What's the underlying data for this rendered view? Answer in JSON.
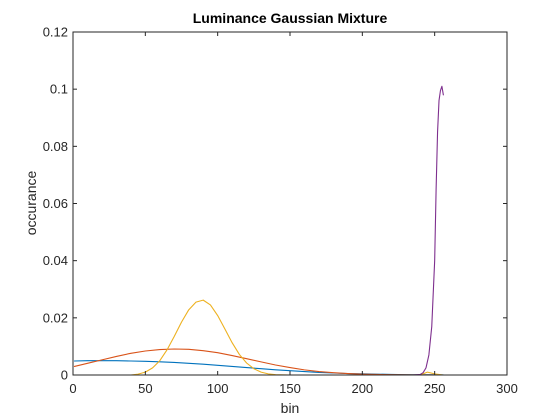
{
  "chart_data": {
    "type": "line",
    "title": "Luminance Gaussian Mixture",
    "xlabel": "bin",
    "ylabel": "occurance",
    "xlim": [
      0,
      300
    ],
    "ylim": [
      0,
      0.12
    ],
    "xticks": [
      0,
      50,
      100,
      150,
      200,
      250,
      300
    ],
    "yticks": [
      0,
      0.02,
      0.04,
      0.06,
      0.08,
      0.1,
      0.12
    ],
    "xtick_labels": [
      "0",
      "50",
      "100",
      "150",
      "200",
      "250",
      "300"
    ],
    "ytick_labels": [
      "0",
      "0.02",
      "0.04",
      "0.06",
      "0.08",
      "0.1",
      "0.12"
    ],
    "grid": false,
    "box": true,
    "series": [
      {
        "color": "#0072BD",
        "x": [
          1,
          10,
          20,
          30,
          40,
          50,
          60,
          70,
          80,
          90,
          100,
          110,
          120,
          130,
          140,
          150,
          160,
          170,
          180,
          190,
          200,
          210,
          220,
          230,
          240,
          250,
          256
        ],
        "y": [
          0.0049,
          0.005,
          0.005,
          0.005,
          0.0049,
          0.0048,
          0.0046,
          0.0044,
          0.0041,
          0.0038,
          0.0034,
          0.003,
          0.0026,
          0.0022,
          0.0018,
          0.0015,
          0.0012,
          0.0009,
          0.0007,
          0.0005,
          0.0004,
          0.0003,
          0.0002,
          0.0001,
          8e-05,
          5e-05,
          4e-05
        ]
      },
      {
        "color": "#D95319",
        "x": [
          1,
          10,
          20,
          30,
          40,
          50,
          60,
          70,
          80,
          90,
          100,
          110,
          120,
          130,
          140,
          150,
          160,
          170,
          180,
          190,
          200,
          210,
          220,
          230,
          240,
          250,
          256
        ],
        "y": [
          0.003,
          0.0041,
          0.0053,
          0.0065,
          0.0076,
          0.0084,
          0.0089,
          0.0091,
          0.009,
          0.0085,
          0.0078,
          0.0068,
          0.0057,
          0.0046,
          0.0035,
          0.0026,
          0.0018,
          0.0012,
          0.0008,
          0.0005,
          0.0003,
          0.0002,
          0.0001,
          5e-05,
          2e-05,
          1e-05,
          0.0
        ]
      },
      {
        "color": "#EDB120",
        "x": [
          1,
          40,
          45,
          50,
          55,
          60,
          65,
          70,
          75,
          80,
          85,
          90,
          95,
          100,
          105,
          110,
          115,
          120,
          125,
          130,
          135,
          140,
          150,
          240,
          245,
          250,
          256
        ],
        "y": [
          0.0,
          0.0,
          0.0003,
          0.001,
          0.0025,
          0.005,
          0.0088,
          0.0135,
          0.0185,
          0.0228,
          0.0255,
          0.0262,
          0.0245,
          0.0208,
          0.0161,
          0.0113,
          0.0072,
          0.0042,
          0.0022,
          0.001,
          0.0004,
          0.0001,
          0.0,
          0.0,
          0.001,
          0.0004,
          0.0
        ]
      },
      {
        "color": "#7E2F8E",
        "x": [
          1,
          100,
          200,
          235,
          240,
          242,
          244,
          246,
          248,
          250,
          251,
          252,
          253,
          254,
          255,
          256
        ],
        "y": [
          0.0,
          0.0,
          0.0,
          0.0,
          0.0002,
          0.0008,
          0.0025,
          0.007,
          0.017,
          0.04,
          0.065,
          0.085,
          0.096,
          0.0995,
          0.101,
          0.098
        ]
      }
    ]
  }
}
